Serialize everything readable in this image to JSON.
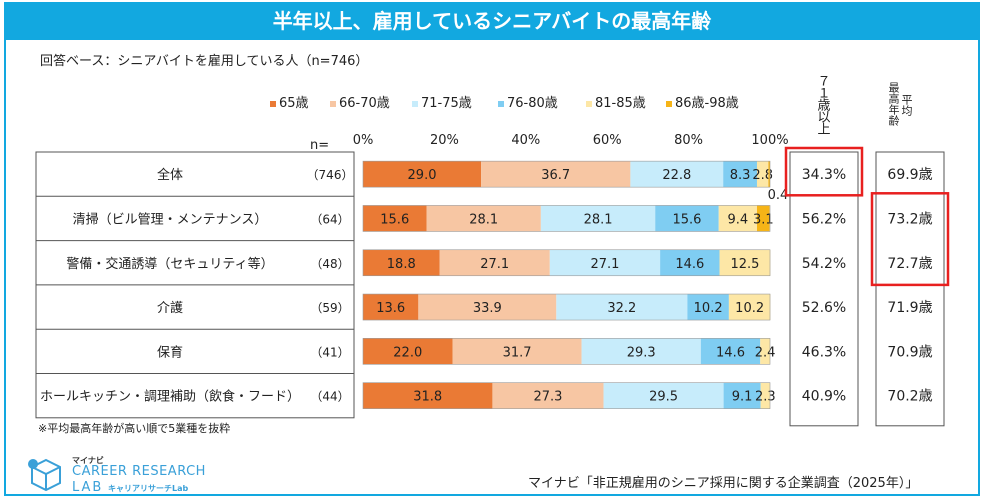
{
  "title": "半年以上、雇用しているシニアバイトの最高年齢",
  "base_note": "回答ベース：シニアバイトを雇用している人（n=746）",
  "n_label": "n=",
  "side_headers": {
    "over71": "７１歳以上",
    "avg_max_age_1": "最高年齢",
    "avg_max_age_2": "平均"
  },
  "footnote": "※平均最高年齢が高い順で5業種を抜粋",
  "logo": {
    "small": "マイナビ",
    "line1": "CAREER RESEARCH",
    "line2": "LAB",
    "sub": "キャリアリサーチLab"
  },
  "source": "マイナビ「非正規雇用のシニア採用に関する企業調査（2025年）」",
  "colors": {
    "banner": "#12a8e0",
    "highlight": "#e8201f"
  },
  "chart_data": {
    "type": "bar",
    "orientation": "horizontal-stacked-100",
    "xlim": [
      0,
      100
    ],
    "ticks": [
      "0%",
      "20%",
      "40%",
      "60%",
      "80%",
      "100%"
    ],
    "legend": [
      {
        "name": "65歳",
        "color": "#ea7a35"
      },
      {
        "name": "66-70歳",
        "color": "#f7c6a3"
      },
      {
        "name": "71-75歳",
        "color": "#c7ecfb"
      },
      {
        "name": "76-80歳",
        "color": "#7fcdf2"
      },
      {
        "name": "81-85歳",
        "color": "#fde7a6"
      },
      {
        "name": "86歳-98歳",
        "color": "#f6b417"
      }
    ],
    "categories": [
      {
        "label": "全体",
        "n": "（746）",
        "values": [
          29.0,
          36.7,
          22.8,
          8.3,
          2.8,
          0.4
        ],
        "labels": [
          "29.0",
          "36.7",
          "22.8",
          "8.3",
          "2.8",
          "0.4"
        ],
        "over71": "34.3%",
        "avg_age": "69.9歳",
        "hl_over71": true,
        "hl_avg": false
      },
      {
        "label": "清掃（ビル管理・メンテナンス）",
        "n": "（64）",
        "values": [
          15.6,
          28.1,
          28.1,
          15.6,
          9.4,
          3.1
        ],
        "labels": [
          "15.6",
          "28.1",
          "28.1",
          "15.6",
          "9.4",
          "3.1"
        ],
        "over71": "56.2%",
        "avg_age": "73.2歳",
        "hl_over71": false,
        "hl_avg": true
      },
      {
        "label": "警備・交通誘導（セキュリティ等）",
        "n": "（48）",
        "values": [
          18.8,
          27.1,
          27.1,
          14.6,
          12.5,
          0
        ],
        "labels": [
          "18.8",
          "27.1",
          "27.1",
          "14.6",
          "12.5",
          ""
        ],
        "over71": "54.2%",
        "avg_age": "72.7歳",
        "hl_over71": false,
        "hl_avg": true
      },
      {
        "label": "介護",
        "n": "（59）",
        "values": [
          13.6,
          33.9,
          32.2,
          10.2,
          10.2,
          0
        ],
        "labels": [
          "13.6",
          "33.9",
          "32.2",
          "10.2",
          "10.2",
          ""
        ],
        "over71": "52.6%",
        "avg_age": "71.9歳",
        "hl_over71": false,
        "hl_avg": false
      },
      {
        "label": "保育",
        "n": "（41）",
        "values": [
          22.0,
          31.7,
          29.3,
          14.6,
          2.4,
          0
        ],
        "labels": [
          "22.0",
          "31.7",
          "29.3",
          "14.6",
          "2.4",
          ""
        ],
        "over71": "46.3%",
        "avg_age": "70.9歳",
        "hl_over71": false,
        "hl_avg": false
      },
      {
        "label": "ホールキッチン・調理補助（飲食・フード）",
        "n": "（44）",
        "values": [
          31.8,
          27.3,
          29.5,
          9.1,
          2.3,
          0
        ],
        "labels": [
          "31.8",
          "27.3",
          "29.5",
          "9.1",
          "2.3",
          ""
        ],
        "over71": "40.9%",
        "avg_age": "70.2歳",
        "hl_over71": false,
        "hl_avg": false
      }
    ]
  }
}
